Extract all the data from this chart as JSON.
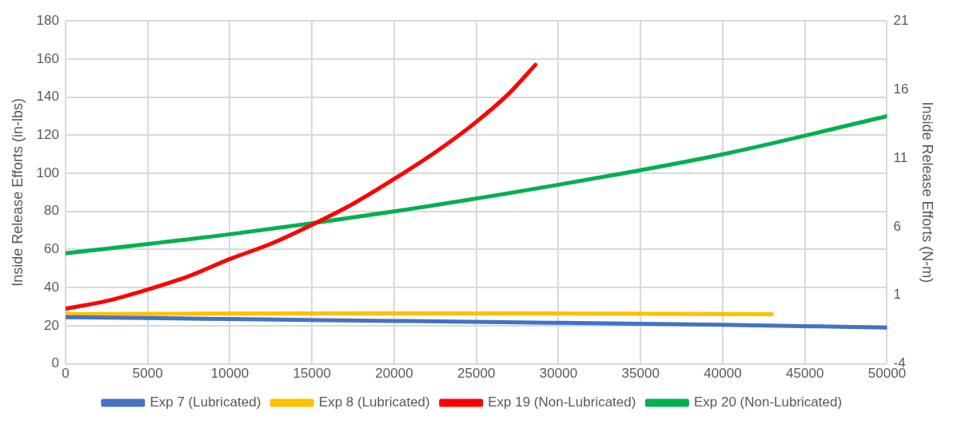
{
  "chart_data": {
    "type": "line",
    "ylabel": "Inside Release Efforts (in-lbs)",
    "y2label": "Inside Release Efforts (N-m)",
    "xlim": [
      0,
      50000
    ],
    "xticks": [
      0,
      5000,
      10000,
      15000,
      20000,
      25000,
      30000,
      35000,
      40000,
      45000,
      50000
    ],
    "ylim": [
      0,
      180
    ],
    "yticks": [
      0,
      20,
      40,
      60,
      80,
      100,
      120,
      140,
      160,
      180
    ],
    "y2lim": [
      -4,
      21
    ],
    "y2ticks": [
      -4,
      1,
      6,
      11,
      16,
      21
    ],
    "grid": true,
    "legend": "bottom",
    "marker": "none",
    "line_style": "solid",
    "series": [
      {
        "name": "Exp 7 (Lubricated)",
        "color": "#4472c4",
        "x": [
          0,
          10000,
          20000,
          30000,
          40000,
          50000
        ],
        "values": [
          24.5,
          23.5,
          22.5,
          21.5,
          20.5,
          19
        ]
      },
      {
        "name": "Exp 8 (Lubricated)",
        "color": "#ffc000",
        "x": [
          0,
          15000,
          28000,
          43000
        ],
        "values": [
          26,
          26.5,
          26.5,
          26
        ]
      },
      {
        "name": "Exp 19 (Non-Lubricated)",
        "color": "#ff0000",
        "x": [
          0,
          2500,
          5000,
          7500,
          10000,
          12500,
          15000,
          17500,
          20000,
          22500,
          25000,
          27000,
          28600
        ],
        "values": [
          29,
          33,
          39,
          46,
          55,
          63,
          73,
          84,
          97,
          111,
          127,
          142,
          157
        ]
      },
      {
        "name": "Exp 20 (Non-Lubricated)",
        "color": "#00b050",
        "x": [
          0,
          10000,
          20000,
          30000,
          40000,
          50000
        ],
        "values": [
          58,
          68,
          80,
          94,
          110,
          130
        ]
      }
    ]
  }
}
